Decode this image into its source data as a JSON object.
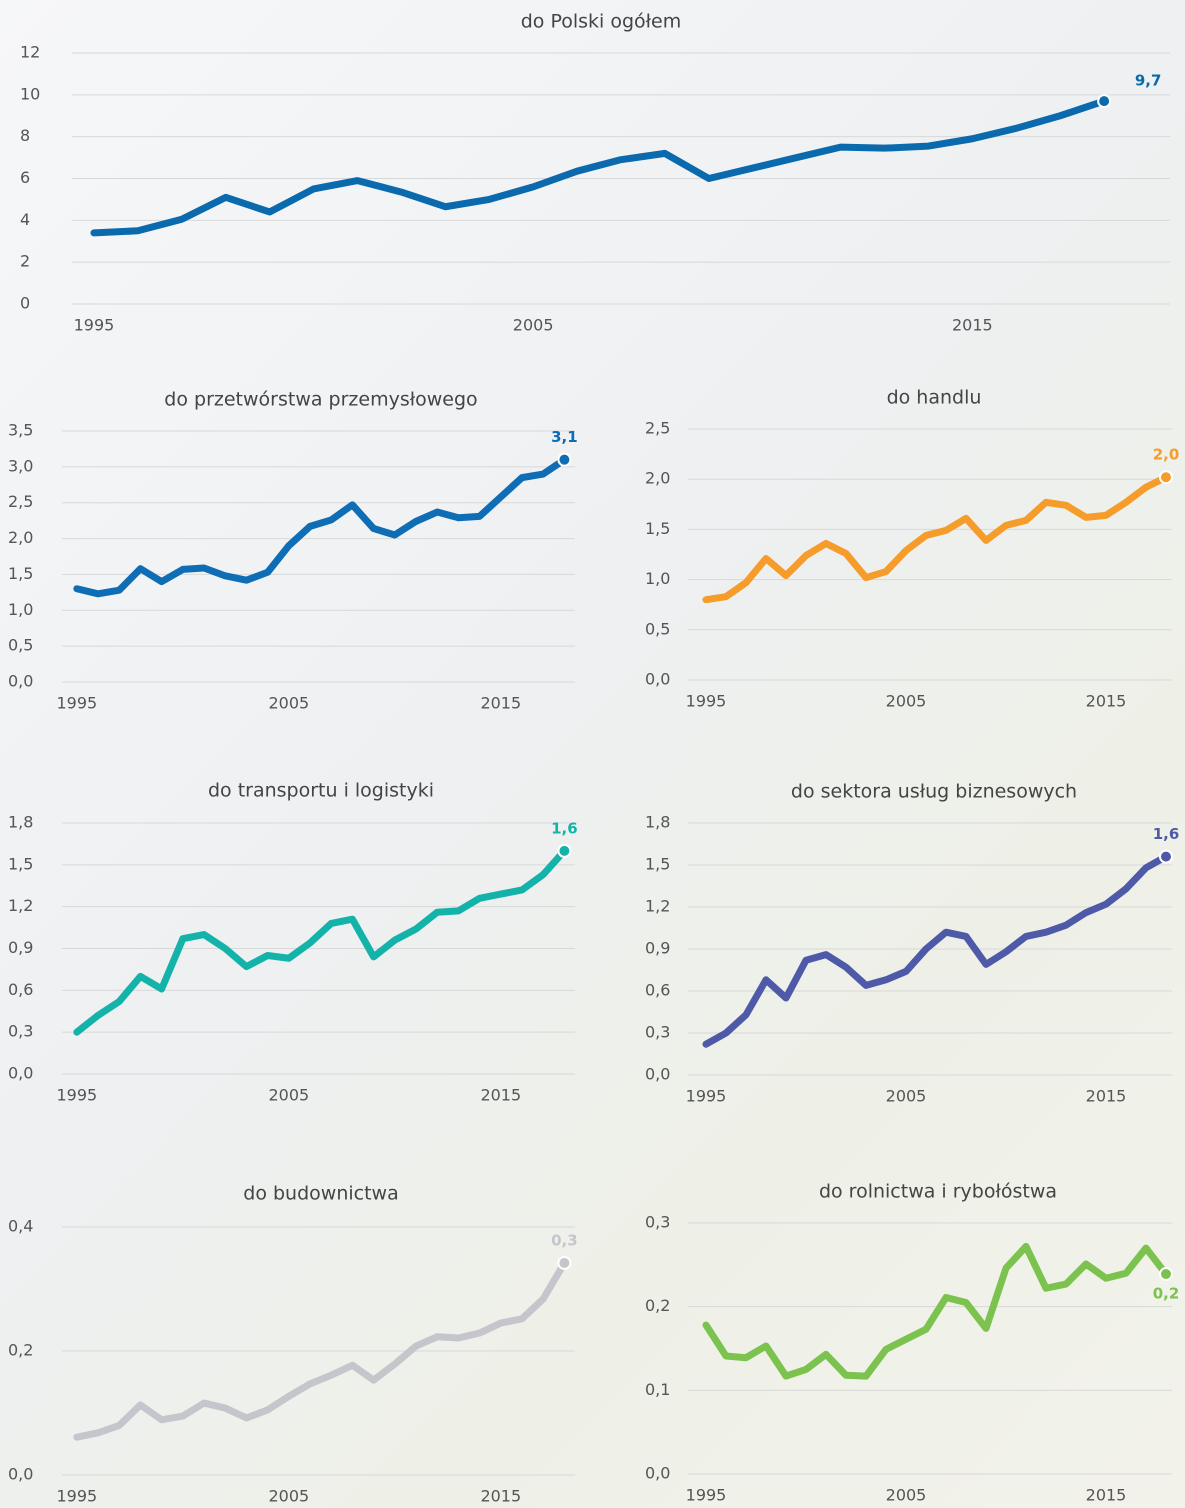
{
  "chart_data": [
    {
      "type": "line",
      "title": "do Polski ogółem",
      "x": [
        1995,
        1996,
        1997,
        1998,
        1999,
        2000,
        2001,
        2002,
        2003,
        2004,
        2005,
        2006,
        2007,
        2008,
        2009,
        2010,
        2011,
        2012,
        2013,
        2014,
        2015,
        2016,
        2017,
        2018
      ],
      "values": [
        3.4,
        3.5,
        4.05,
        5.1,
        4.4,
        5.5,
        5.9,
        5.35,
        4.65,
        5.0,
        5.6,
        6.35,
        6.9,
        7.2,
        6.0,
        6.5,
        7.0,
        7.5,
        7.45,
        7.55,
        7.9,
        8.4,
        9.0,
        9.7
      ],
      "value_labels": [
        null,
        null,
        null,
        null,
        null,
        null,
        null,
        null,
        null,
        null,
        null,
        null,
        null,
        null,
        null,
        null,
        null,
        null,
        null,
        null,
        null,
        null,
        null,
        "9,7"
      ],
      "color": "#0a6aad",
      "xlim": [
        1994.5,
        2019.5
      ],
      "xticks": [
        1995,
        2005,
        2015
      ],
      "ylim": [
        0,
        12
      ],
      "yticks": [
        0,
        2,
        4,
        6,
        8,
        10,
        12
      ],
      "grid": true
    },
    {
      "type": "line",
      "title": "do przetwórstwa przemysłowego",
      "x": [
        1995,
        1996,
        1997,
        1998,
        1999,
        2000,
        2001,
        2002,
        2003,
        2004,
        2005,
        2006,
        2007,
        2008,
        2009,
        2010,
        2011,
        2012,
        2013,
        2014,
        2015,
        2016,
        2017,
        2018
      ],
      "values": [
        1.3,
        1.23,
        1.28,
        1.58,
        1.4,
        1.57,
        1.59,
        1.48,
        1.42,
        1.53,
        1.9,
        2.17,
        2.26,
        2.47,
        2.14,
        2.05,
        2.24,
        2.37,
        2.29,
        2.31,
        2.58,
        2.85,
        2.9,
        3.1
      ],
      "value_labels": [
        null,
        null,
        null,
        null,
        null,
        null,
        null,
        null,
        null,
        null,
        null,
        null,
        null,
        null,
        null,
        null,
        null,
        null,
        null,
        null,
        null,
        null,
        null,
        "3,1"
      ],
      "color": "#0e6db5",
      "xlim": [
        1994.3,
        2018.5
      ],
      "xticks": [
        1995,
        2005,
        2015
      ],
      "ylim": [
        0,
        3.5
      ],
      "yticks": [
        {
          "value": 0,
          "label": "0,0"
        },
        {
          "value": 0.5,
          "label": "0,5"
        },
        {
          "value": 1,
          "label": "1,0"
        },
        {
          "value": 1.5,
          "label": "1,5"
        },
        {
          "value": 2,
          "label": "2,0"
        },
        {
          "value": 2.5,
          "label": "2,5"
        },
        {
          "value": 3,
          "label": "3,0"
        },
        {
          "value": 3.5,
          "label": "3,5"
        }
      ],
      "grid": true
    },
    {
      "type": "line",
      "title": "do handlu",
      "x": [
        1995,
        1996,
        1997,
        1998,
        1999,
        2000,
        2001,
        2002,
        2003,
        2004,
        2005,
        2006,
        2007,
        2008,
        2009,
        2010,
        2011,
        2012,
        2013,
        2014,
        2015,
        2016,
        2017,
        2018
      ],
      "values": [
        0.8,
        0.83,
        0.97,
        1.21,
        1.04,
        1.24,
        1.36,
        1.26,
        1.02,
        1.08,
        1.29,
        1.44,
        1.49,
        1.61,
        1.39,
        1.54,
        1.59,
        1.77,
        1.74,
        1.62,
        1.64,
        1.77,
        1.92,
        2.02
      ],
      "value_labels": [
        null,
        null,
        null,
        null,
        null,
        null,
        null,
        null,
        null,
        null,
        null,
        null,
        null,
        null,
        null,
        null,
        null,
        null,
        null,
        null,
        null,
        null,
        null,
        "2,0"
      ],
      "color": "#f59c2a",
      "xlim": [
        1994.1,
        2018.3
      ],
      "xticks": [
        1995,
        2005,
        2015
      ],
      "ylim": [
        0,
        2.5
      ],
      "yticks": [
        {
          "value": 0,
          "label": "0,0"
        },
        {
          "value": 0.5,
          "label": "0,5"
        },
        {
          "value": 1,
          "label": "1,0"
        },
        {
          "value": 1.5,
          "label": "1,5"
        },
        {
          "value": 2,
          "label": "2,0"
        },
        {
          "value": 2.5,
          "label": "2,5"
        }
      ],
      "grid": true
    },
    {
      "type": "line",
      "title": "do transportu i logistyki",
      "x": [
        1995,
        1996,
        1997,
        1998,
        1999,
        2000,
        2001,
        2002,
        2003,
        2004,
        2005,
        2006,
        2007,
        2008,
        2009,
        2010,
        2011,
        2012,
        2013,
        2014,
        2015,
        2016,
        2017,
        2018
      ],
      "values": [
        0.3,
        0.42,
        0.52,
        0.7,
        0.61,
        0.97,
        1.0,
        0.9,
        0.77,
        0.85,
        0.83,
        0.94,
        1.08,
        1.11,
        0.84,
        0.96,
        1.04,
        1.16,
        1.17,
        1.26,
        1.29,
        1.32,
        1.43,
        1.6
      ],
      "value_labels": [
        null,
        null,
        null,
        null,
        null,
        null,
        null,
        null,
        null,
        null,
        null,
        null,
        null,
        null,
        null,
        null,
        null,
        null,
        null,
        null,
        null,
        null,
        null,
        "1,6"
      ],
      "color": "#14b3aa",
      "xlim": [
        1994.3,
        2018.5
      ],
      "xticks": [
        1995,
        2005,
        2015
      ],
      "ylim": [
        0,
        1.8
      ],
      "yticks": [
        {
          "value": 0,
          "label": "0,0"
        },
        {
          "value": 0.3,
          "label": "0,3"
        },
        {
          "value": 0.6,
          "label": "0,6"
        },
        {
          "value": 0.9,
          "label": "0,9"
        },
        {
          "value": 1.2,
          "label": "1,2"
        },
        {
          "value": 1.5,
          "label": "1,5"
        },
        {
          "value": 1.8,
          "label": "1,8"
        }
      ],
      "grid": true
    },
    {
      "type": "line",
      "title": "do sektora usług biznesowych",
      "x": [
        1995,
        1996,
        1997,
        1998,
        1999,
        2000,
        2001,
        2002,
        2003,
        2004,
        2005,
        2006,
        2007,
        2008,
        2009,
        2010,
        2011,
        2012,
        2013,
        2014,
        2015,
        2016,
        2017,
        2018
      ],
      "values": [
        0.22,
        0.3,
        0.43,
        0.68,
        0.55,
        0.82,
        0.86,
        0.77,
        0.64,
        0.68,
        0.74,
        0.9,
        1.02,
        0.99,
        0.79,
        0.88,
        0.99,
        1.02,
        1.07,
        1.16,
        1.22,
        1.33,
        1.48,
        1.56
      ],
      "value_labels": [
        null,
        null,
        null,
        null,
        null,
        null,
        null,
        null,
        null,
        null,
        null,
        null,
        null,
        null,
        null,
        null,
        null,
        null,
        null,
        null,
        null,
        null,
        null,
        "1,6"
      ],
      "color": "#4e5aa8",
      "xlim": [
        1994.1,
        2018.3
      ],
      "xticks": [
        1995,
        2005,
        2015
      ],
      "ylim": [
        0,
        1.8
      ],
      "yticks": [
        {
          "value": 0,
          "label": "0,0"
        },
        {
          "value": 0.3,
          "label": "0,3"
        },
        {
          "value": 0.6,
          "label": "0,6"
        },
        {
          "value": 0.9,
          "label": "0,9"
        },
        {
          "value": 1.2,
          "label": "1,2"
        },
        {
          "value": 1.5,
          "label": "1,5"
        },
        {
          "value": 1.8,
          "label": "1,8"
        }
      ],
      "grid": true
    },
    {
      "type": "line",
      "title": "do budownictwa",
      "x": [
        1995,
        1996,
        1997,
        1998,
        1999,
        2000,
        2001,
        2002,
        2003,
        2004,
        2005,
        2006,
        2007,
        2008,
        2009,
        2010,
        2011,
        2012,
        2013,
        2014,
        2015,
        2016,
        2017,
        2018
      ],
      "values": [
        0.061,
        0.068,
        0.08,
        0.113,
        0.089,
        0.095,
        0.116,
        0.108,
        0.092,
        0.105,
        0.127,
        0.147,
        0.161,
        0.177,
        0.153,
        0.179,
        0.208,
        0.223,
        0.221,
        0.229,
        0.245,
        0.252,
        0.284,
        0.342
      ],
      "value_labels": [
        null,
        null,
        null,
        null,
        null,
        null,
        null,
        null,
        null,
        null,
        null,
        null,
        null,
        null,
        null,
        null,
        null,
        null,
        null,
        null,
        null,
        null,
        null,
        "0,3"
      ],
      "color": "#c5c5cc",
      "xlim": [
        1994.3,
        2018.5
      ],
      "xticks": [
        1995,
        2005,
        2015
      ],
      "ylim": [
        0,
        0.4
      ],
      "yticks": [
        {
          "value": 0,
          "label": "0,0"
        },
        {
          "value": 0.2,
          "label": "0,2"
        },
        {
          "value": 0.4,
          "label": "0,4"
        }
      ],
      "grid": true
    },
    {
      "type": "line",
      "title": "do rolnictwa i rybołóstwa",
      "x": [
        1995,
        1996,
        1997,
        1998,
        1999,
        2000,
        2001,
        2002,
        2003,
        2004,
        2005,
        2006,
        2007,
        2008,
        2009,
        2010,
        2011,
        2012,
        2013,
        2014,
        2015,
        2016,
        2017,
        2018
      ],
      "values": [
        0.178,
        0.141,
        0.139,
        0.153,
        0.117,
        0.125,
        0.143,
        0.118,
        0.117,
        0.149,
        0.161,
        0.173,
        0.211,
        0.205,
        0.174,
        0.246,
        0.272,
        0.222,
        0.227,
        0.251,
        0.234,
        0.24,
        0.27,
        0.239
      ],
      "value_labels": [
        null,
        null,
        null,
        null,
        null,
        null,
        null,
        null,
        null,
        null,
        null,
        null,
        null,
        null,
        null,
        null,
        null,
        null,
        null,
        null,
        null,
        null,
        null,
        "0,2"
      ],
      "color": "#7cc24e",
      "xlim": [
        1994.1,
        2018.3
      ],
      "xticks": [
        1995,
        2005,
        2015
      ],
      "ylim": [
        0,
        0.3
      ],
      "yticks": [
        {
          "value": 0,
          "label": "0,0"
        },
        {
          "value": 0.1,
          "label": "0,1"
        },
        {
          "value": 0.2,
          "label": "0,2"
        },
        {
          "value": 0.3,
          "label": "0,3"
        }
      ],
      "grid": true
    }
  ]
}
